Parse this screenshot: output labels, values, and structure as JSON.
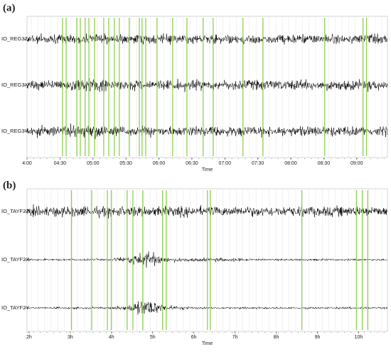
{
  "chart_data": [
    {
      "type": "seismogram",
      "panel": "(a)",
      "x_label": "Time",
      "channels": [
        "IO_REG3Z",
        "IO_REG3X",
        "IO_REG3Y"
      ],
      "xlim": [
        240,
        568
      ],
      "xticks": [
        {
          "value": 240,
          "label": "4:00"
        },
        {
          "value": 270,
          "label": "04:30"
        },
        {
          "value": 300,
          "label": "05:00"
        },
        {
          "value": 330,
          "label": "05:30"
        },
        {
          "value": 360,
          "label": "06:00"
        },
        {
          "value": 390,
          "label": "06:30"
        },
        {
          "value": 420,
          "label": "07:00"
        },
        {
          "value": 450,
          "label": "07:30"
        },
        {
          "value": 480,
          "label": "08:00"
        },
        {
          "value": 510,
          "label": "08:30"
        },
        {
          "value": 540,
          "label": "09:00"
        }
      ],
      "event_color": "#8fd14f",
      "events": [
        272.3,
        275.6,
        285.3,
        288.5,
        293,
        296.3,
        301.4,
        309.8,
        314.4,
        319.5,
        324,
        333,
        342.2,
        344.7,
        348,
        358.3,
        372.5,
        385.5,
        400.3,
        409.4,
        436.5,
        454.7,
        510.9,
        545.8,
        549
      ]
    },
    {
      "type": "seismogram",
      "panel": "(b)",
      "x_label": "Time",
      "channels": [
        "IO_TAYF2Z",
        "IO_TAYF2X",
        "IO_TAYF2Y"
      ],
      "xlim": [
        1.95,
        10.7
      ],
      "xticks": [
        {
          "value": 2,
          "label": "2h"
        },
        {
          "value": 3,
          "label": "3h"
        },
        {
          "value": 4,
          "label": "4h"
        },
        {
          "value": 5,
          "label": "5h"
        },
        {
          "value": 6,
          "label": "6h"
        },
        {
          "value": 7,
          "label": "7h"
        },
        {
          "value": 8,
          "label": "8h"
        },
        {
          "value": 9,
          "label": "9h"
        },
        {
          "value": 10,
          "label": "10h"
        }
      ],
      "event_color": "#8fd14f",
      "events": [
        3.03,
        3.52,
        3.9,
        4.0,
        4.38,
        4.52,
        4.76,
        5.24,
        5.33,
        6.33,
        6.4,
        8.62,
        9.95,
        10.09,
        10.22
      ]
    }
  ]
}
